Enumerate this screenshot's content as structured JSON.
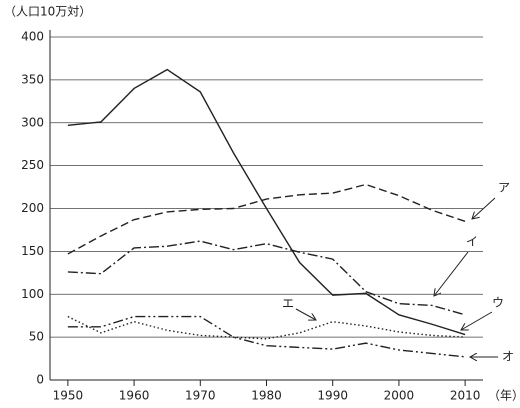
{
  "chart_data": {
    "type": "line",
    "y_label": "（人口10万対）",
    "x_label": "（年）",
    "x": [
      1950,
      1955,
      1960,
      1965,
      1970,
      1975,
      1980,
      1985,
      1990,
      1995,
      2000,
      2005,
      2010
    ],
    "series": [
      {
        "name": "ア",
        "color": "#222222",
        "line_style": "dashed",
        "values": [
          147,
          168,
          187,
          196,
          199,
          200,
          211,
          216,
          218,
          228,
          215,
          198,
          185
        ]
      },
      {
        "name": "イ",
        "color": "#222222",
        "line_style": "dash-dot",
        "values": [
          126,
          124,
          154,
          156,
          162,
          152,
          159,
          149,
          141,
          103,
          89,
          87,
          76
        ]
      },
      {
        "name": "ウ",
        "color": "#222222",
        "line_style": "solid",
        "values": [
          297,
          301,
          340,
          362,
          336,
          265,
          200,
          137,
          99,
          101,
          76,
          65,
          53
        ]
      },
      {
        "name": "エ",
        "color": "#222222",
        "line_style": "dotted",
        "values": [
          74,
          55,
          68,
          58,
          52,
          50,
          48,
          55,
          68,
          63,
          56,
          52,
          50
        ]
      },
      {
        "name": "オ",
        "color": "#222222",
        "line_style": "dash-dot-dot",
        "values": [
          62,
          62,
          74,
          74,
          74,
          50,
          40,
          38,
          36,
          43,
          35,
          31,
          27
        ]
      }
    ],
    "xlim": [
      1947.3,
      2012.7
    ],
    "ylim": [
      0,
      400
    ],
    "xticks": [
      1950,
      1960,
      1970,
      1980,
      1990,
      2000,
      2010
    ],
    "yticks": [
      0,
      50,
      100,
      150,
      200,
      250,
      300,
      350,
      400
    ],
    "grid": true
  }
}
